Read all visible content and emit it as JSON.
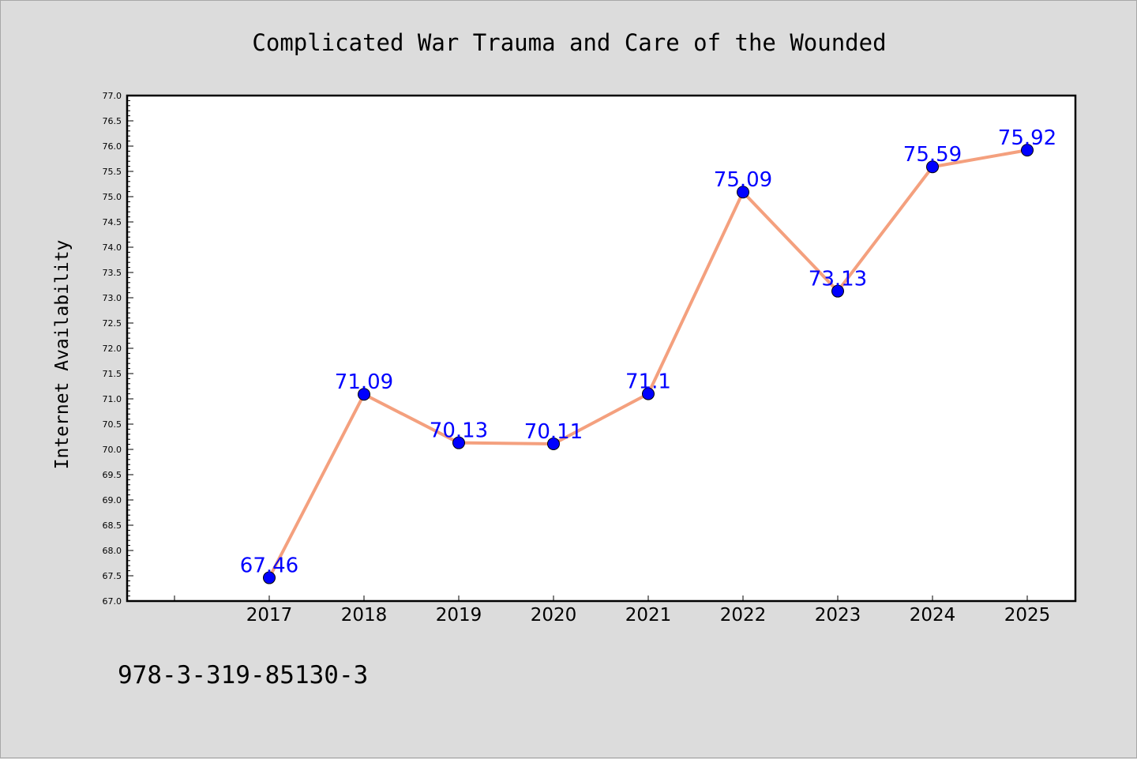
{
  "chart_data": {
    "type": "line",
    "title": "Complicated War Trauma and Care of the Wounded",
    "xlabel": "",
    "ylabel": "Internet Availability",
    "categories": [
      "2017",
      "2018",
      "2019",
      "2020",
      "2021",
      "2022",
      "2023",
      "2024",
      "2025"
    ],
    "series": [
      {
        "values": [
          67.46,
          71.09,
          70.13,
          70.11,
          71.1,
          75.09,
          73.13,
          75.59,
          75.92
        ],
        "labels": [
          "67.46",
          "71.09",
          "70.13",
          "70.11",
          "71.1",
          "75.09",
          "73.13",
          "75.59",
          "75.92"
        ],
        "line_color": "#f4a07e",
        "marker_color": "#0000ff"
      }
    ],
    "ylim": [
      67.0,
      77.0
    ],
    "yticks": [
      "67.0",
      "67.5",
      "68.0",
      "68.5",
      "69.0",
      "69.5",
      "70.0",
      "70.5",
      "71.0",
      "71.5",
      "72.0",
      "72.5",
      "73.0",
      "73.5",
      "74.0",
      "74.5",
      "75.0",
      "75.5",
      "76.0",
      "76.5",
      "77.0"
    ],
    "grid": false,
    "label_color": "#0000ff"
  },
  "footer": {
    "isbn": "978-3-319-85130-3"
  }
}
